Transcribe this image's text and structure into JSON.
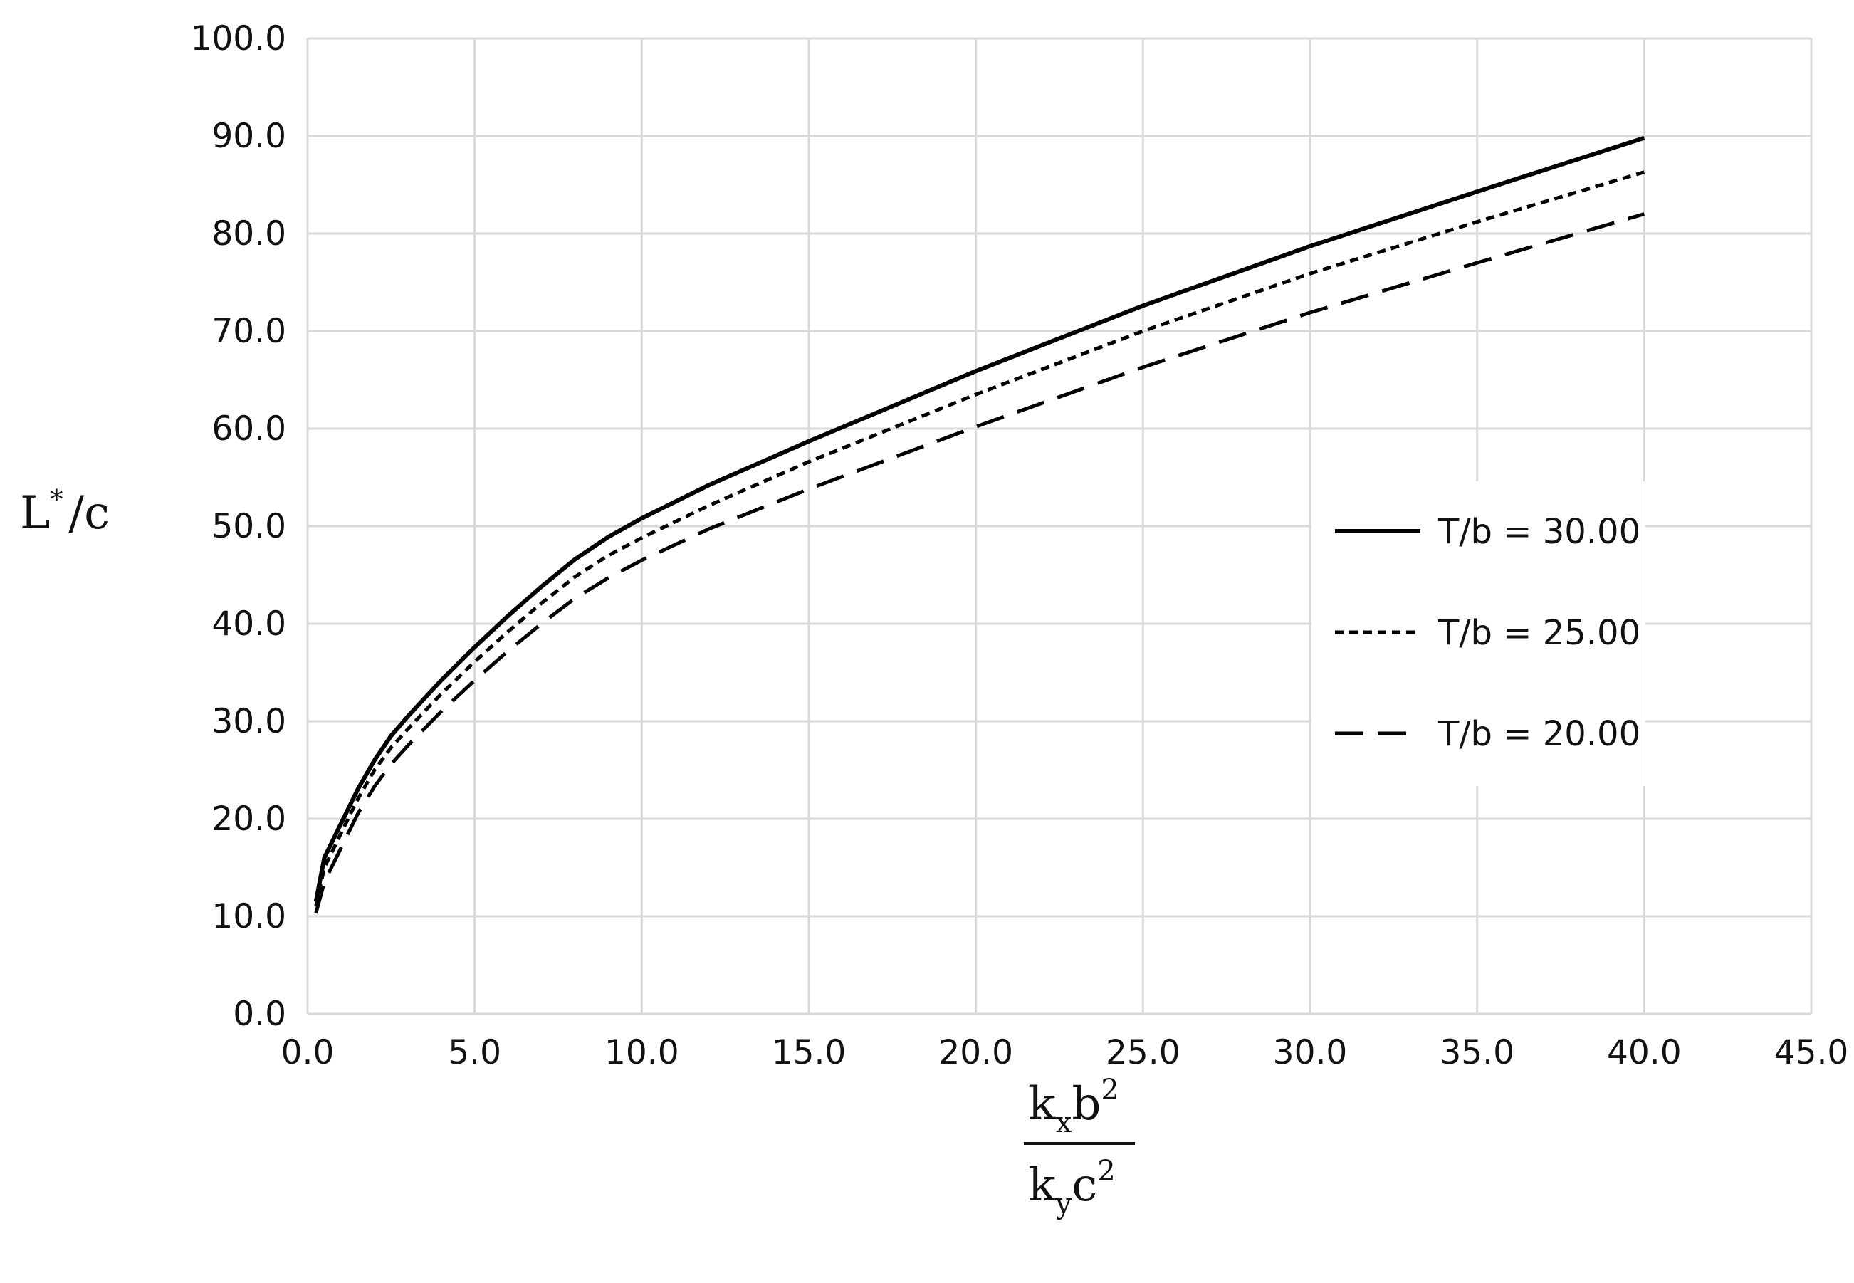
{
  "chart_data": {
    "type": "line",
    "title": "",
    "xlim": [
      0,
      45
    ],
    "ylim": [
      0,
      100
    ],
    "x_ticks": [
      "0.0",
      "5.0",
      "10.0",
      "15.0",
      "20.0",
      "25.0",
      "30.0",
      "35.0",
      "40.0",
      "45.0"
    ],
    "y_ticks": [
      "0.0",
      "10.0",
      "20.0",
      "30.0",
      "40.0",
      "50.0",
      "60.0",
      "70.0",
      "80.0",
      "90.0",
      "100.0"
    ],
    "grid": true,
    "legend_position": "right",
    "ylabel": {
      "base": "L",
      "superscript": "*",
      "rest": "/c"
    },
    "xlabel": {
      "numerator": {
        "k": "k",
        "k_sub": "x",
        "b": "b",
        "b_sup": "2"
      },
      "denominator": {
        "k": "k",
        "k_sub": "y",
        "c": "c",
        "c_sup": "2"
      }
    },
    "series": [
      {
        "name": "T/b = 30.00",
        "style": "solid",
        "x": [
          0.25,
          0.5,
          1,
          1.5,
          2,
          2.5,
          3,
          4,
          5,
          6,
          7,
          8,
          9,
          10,
          12,
          15,
          20,
          25,
          30,
          35,
          40
        ],
        "y": [
          11.5,
          16,
          19.5,
          23,
          26,
          28.5,
          30.5,
          34.2,
          37.6,
          40.8,
          43.8,
          46.6,
          48.9,
          50.8,
          54.2,
          58.7,
          65.9,
          72.6,
          78.7,
          84.3,
          89.8
        ]
      },
      {
        "name": "T/b = 25.00",
        "style": "dotted",
        "x": [
          0.25,
          0.5,
          1,
          1.5,
          2,
          2.5,
          3,
          4,
          5,
          6,
          7,
          8,
          9,
          10,
          12,
          15,
          20,
          25,
          30,
          35,
          40
        ],
        "y": [
          11,
          15,
          18.5,
          22,
          25,
          27.3,
          29.2,
          32.8,
          36.1,
          39.2,
          42.1,
          44.8,
          47,
          48.8,
          52.1,
          56.6,
          63.5,
          70,
          75.9,
          81.2,
          86.3
        ]
      },
      {
        "name": "T/b = 20.00",
        "style": "dashed",
        "x": [
          0.25,
          0.5,
          1,
          1.5,
          2,
          2.5,
          3,
          4,
          5,
          6,
          7,
          8,
          9,
          10,
          12,
          15,
          20,
          25,
          30,
          35,
          40
        ],
        "y": [
          10.3,
          13.5,
          17,
          20.5,
          23.3,
          25.6,
          27.5,
          31,
          34.2,
          37.2,
          40,
          42.6,
          44.7,
          46.5,
          49.7,
          53.8,
          60.2,
          66.3,
          71.9,
          77,
          82
        ]
      }
    ]
  }
}
